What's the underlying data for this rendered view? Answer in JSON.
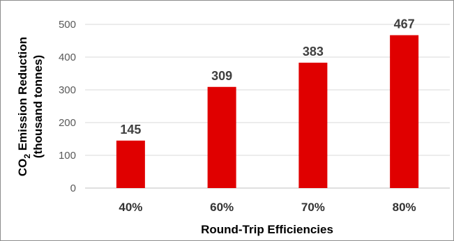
{
  "chart_data": {
    "type": "bar",
    "categories": [
      "40%",
      "60%",
      "70%",
      "80%"
    ],
    "values": [
      145,
      309,
      383,
      467
    ],
    "data_labels": [
      "145",
      "309",
      "383",
      "467"
    ],
    "xlabel": "Round-Trip Efficiencies",
    "ylabel": {
      "main_prefix": "CO",
      "subscript": "2",
      "main_suffix": " Emission Reduction",
      "second_line": "(thousand tonnes)"
    },
    "ylim": [
      0,
      500
    ],
    "yticks": [
      0,
      100,
      200,
      300,
      400,
      500
    ],
    "ytick_labels": [
      "0",
      "100",
      "200",
      "300",
      "400",
      "500"
    ],
    "grid": true,
    "legend": "none",
    "colors": {
      "bar": "#e00000",
      "grid": "#d9d9d9",
      "axis": "#bfbfbf"
    }
  }
}
